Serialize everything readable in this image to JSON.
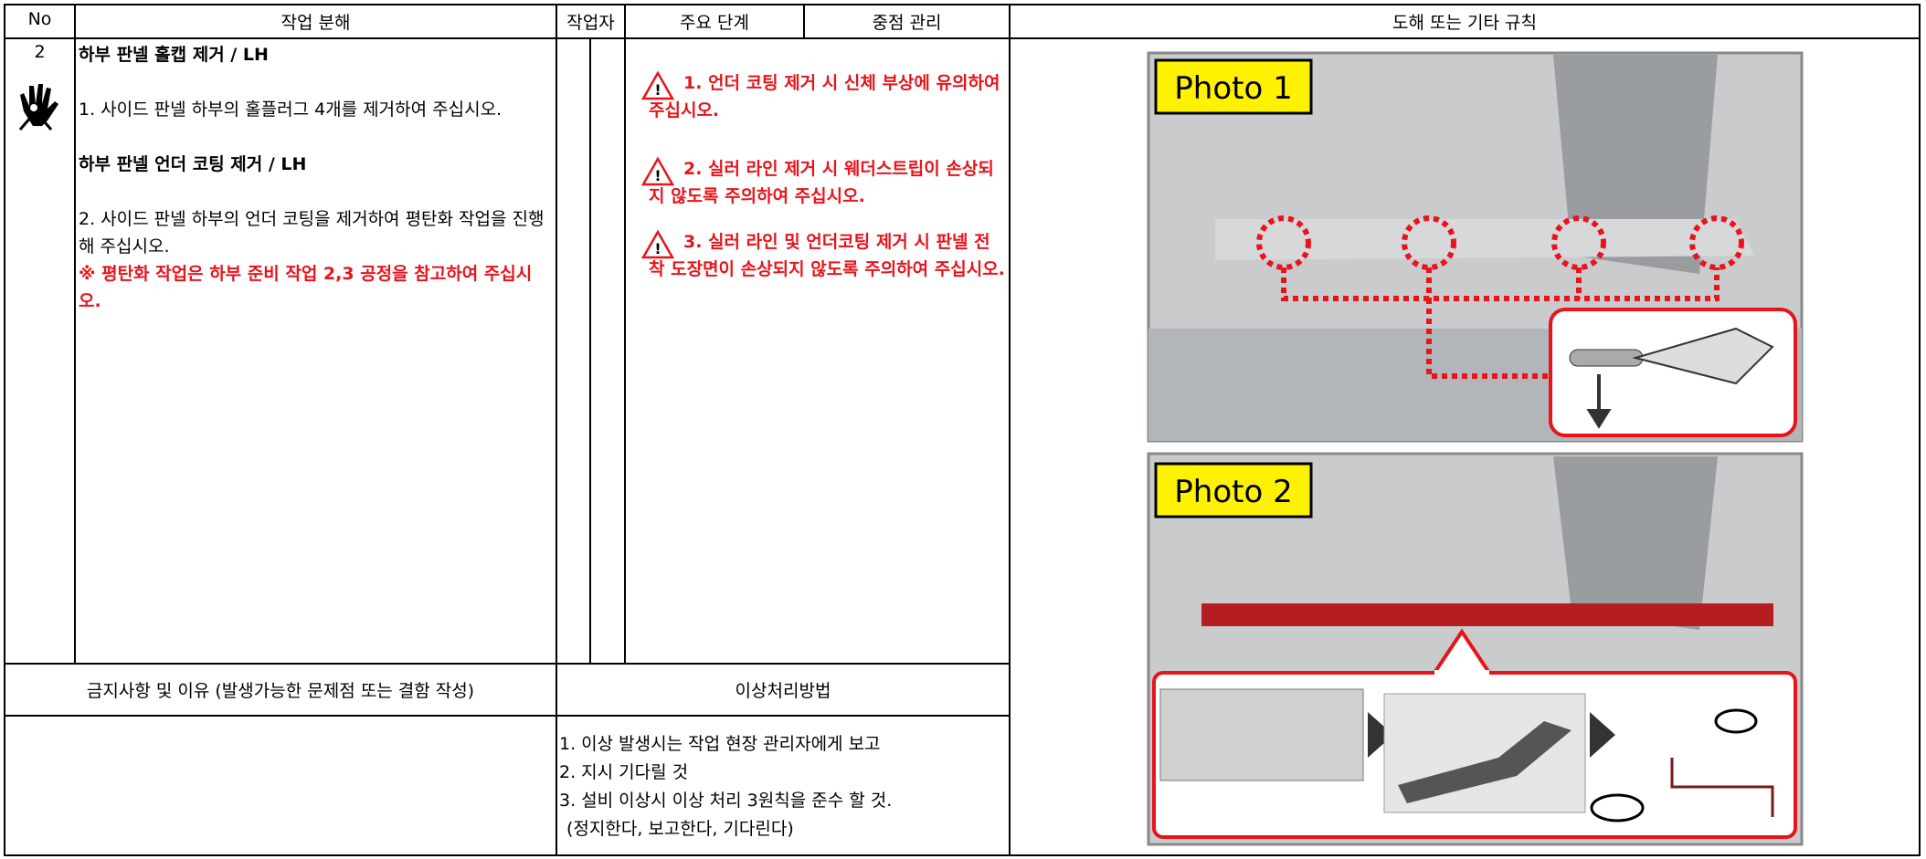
{
  "header": {
    "no": "No",
    "task": "작업 분해",
    "worker": "작업자",
    "main_steps": "주요 단계",
    "key_control": "중점 관리",
    "diagram": "도해 또는 기타 규칙"
  },
  "row": {
    "no": "2",
    "task": [
      {
        "text": "하부 판넬 홀캡 제거 / LH",
        "style": "bold"
      },
      {
        "text": "1. 사이드 판넬 하부의 홀플러그 4개를 제거하여 주십시오.",
        "style": "normal"
      },
      {
        "text": "하부 판넬 언더 코팅 제거 / LH",
        "style": "bold"
      },
      {
        "text": "2. 사이드 판넬 하부의 언더 코팅을 제거하여 평탄화 작업을 진행해 주십시오.",
        "style": "normal"
      },
      {
        "text": "※ 평탄화 작업은 하부 준비 작업 2,3 공정을 참고하여 주십시오.",
        "style": "red"
      }
    ],
    "key_points": [
      "1. 언더 코팅 제거 시 신체 부상에 유의하여 주십시오.",
      "2. 실러 라인 제거 시 웨더스트립이 손상되지 않도록 주의하여 주십시오.",
      "3. 실러 라인 및 언더코팅 제거 시 판넬 전착 도장면이 손상되지 않도록 주의하여 주십시오."
    ],
    "photos": [
      "Photo 1",
      "Photo 2"
    ]
  },
  "footer": {
    "prohibited": "금지사항 및 이유 (발생가능한 문제점 또는 결함 작성)",
    "abnormal": "이상처리방법",
    "abnormal_steps": [
      "1. 이상 발생시는 작업 현장 관리자에게 보고",
      "2. 지시 기다릴 것",
      "3. 설비 이상시 이상 처리 3원칙을 준수 할 것.",
      "(정지한다, 보고한다, 기다린다)"
    ]
  }
}
